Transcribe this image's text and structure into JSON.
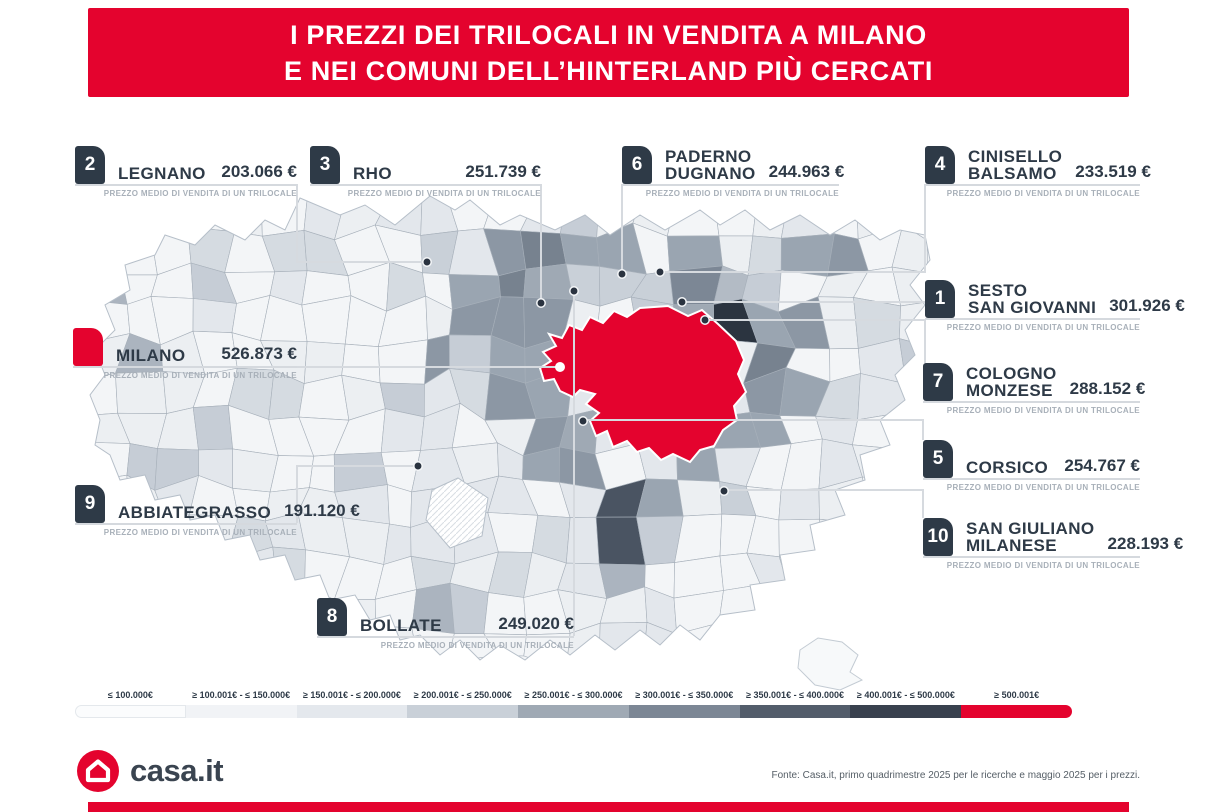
{
  "header": {
    "title_line1": "I PREZZI DEI TRILOCALI IN VENDITA A MILANO",
    "title_line2": "E NEI COMUNI DELL’HINTERLAND PIÙ CERCATI"
  },
  "callout_subtitle": "PREZZO MEDIO DI VENDITA DI UN TRILOCALE",
  "callouts": {
    "milano": {
      "rank": "",
      "name1": "MILANO",
      "name2": "",
      "price": "526.873 €"
    },
    "sesto": {
      "rank": "1",
      "name1": "SESTO",
      "name2": "SAN GIOVANNI",
      "price": "301.926 €"
    },
    "legnano": {
      "rank": "2",
      "name1": "LEGNANO",
      "name2": "",
      "price": "203.066 €"
    },
    "rho": {
      "rank": "3",
      "name1": "RHO",
      "name2": "",
      "price": "251.739 €"
    },
    "cinisello": {
      "rank": "4",
      "name1": "CINISELLO",
      "name2": "BALSAMO",
      "price": "233.519 €"
    },
    "corsico": {
      "rank": "5",
      "name1": "CORSICO",
      "name2": "",
      "price": "254.767 €"
    },
    "paderno": {
      "rank": "6",
      "name1": "PADERNO",
      "name2": "DUGNANO",
      "price": "244.963 €"
    },
    "cologno": {
      "rank": "7",
      "name1": "COLOGNO",
      "name2": "MONZESE",
      "price": "288.152 €"
    },
    "bollate": {
      "rank": "8",
      "name1": "BOLLATE",
      "name2": "",
      "price": "249.020 €"
    },
    "abbiategrasso": {
      "rank": "9",
      "name1": "ABBIATEGRASSO",
      "name2": "",
      "price": "191.120 €"
    },
    "sangiuliano": {
      "rank": "10",
      "name1": "SAN GIULIANO",
      "name2": "MILANESE",
      "price": "228.193 €"
    }
  },
  "legend": {
    "items": [
      {
        "label": "≤ 100.000€",
        "color": "#FBFCFD"
      },
      {
        "label": "≥ 100.001€ - ≤ 150.000€",
        "color": "#F1F3F6"
      },
      {
        "label": "≥ 150.001€ - ≤ 200.000€",
        "color": "#E4E8ED"
      },
      {
        "label": "≥ 200.001€ - ≤ 250.000€",
        "color": "#C9D0D8"
      },
      {
        "label": "≥ 250.001€ - ≤ 300.000€",
        "color": "#9FA9B4"
      },
      {
        "label": "≥ 300.001€ - ≤ 350.000€",
        "color": "#7C8795"
      },
      {
        "label": "≥ 350.001€ - ≤ 400.000€",
        "color": "#535D6B"
      },
      {
        "label": "≥ 400.001€ - ≤ 500.000€",
        "color": "#39414E"
      },
      {
        "label": "≥ 500.001€",
        "color": "#E4032E"
      }
    ]
  },
  "footer": {
    "logo_text": "casa.it",
    "source": "Fonte: Casa.it, primo quadrimestre 2025 per le ricerche e maggio 2025 per i prezzi."
  },
  "colors": {
    "brand_red": "#E4032E",
    "badge_navy": "#2E3A47",
    "connector_gray": "#D6DADF"
  },
  "chart_data": {
    "type": "choropleth_map",
    "title": "I prezzi dei trilocali in vendita a Milano e nei comuni dell'hinterland più cercati",
    "unit": "EUR",
    "series": [
      {
        "rank": 1,
        "comune": "Sesto San Giovanni",
        "price": 301926
      },
      {
        "rank": 2,
        "comune": "Legnano",
        "price": 203066
      },
      {
        "rank": 3,
        "comune": "Rho",
        "price": 251739
      },
      {
        "rank": 4,
        "comune": "Cinisello Balsamo",
        "price": 233519
      },
      {
        "rank": 5,
        "comune": "Corsico",
        "price": 254767
      },
      {
        "rank": 6,
        "comune": "Paderno Dugnano",
        "price": 244963
      },
      {
        "rank": 7,
        "comune": "Cologno Monzese",
        "price": 288152
      },
      {
        "rank": 8,
        "comune": "Bollate",
        "price": 249020
      },
      {
        "rank": 9,
        "comune": "Abbiategrasso",
        "price": 191120
      },
      {
        "rank": 10,
        "comune": "San Giuliano Milanese",
        "price": 228193
      },
      {
        "rank": null,
        "comune": "Milano",
        "price": 526873
      }
    ],
    "legend_bins": [
      "≤100.000",
      "100.001-150.000",
      "150.001-200.000",
      "200.001-250.000",
      "250.001-300.000",
      "300.001-350.000",
      "350.001-400.000",
      "400.001-500.000",
      "≥500.001"
    ],
    "legend_position": "bottom"
  }
}
